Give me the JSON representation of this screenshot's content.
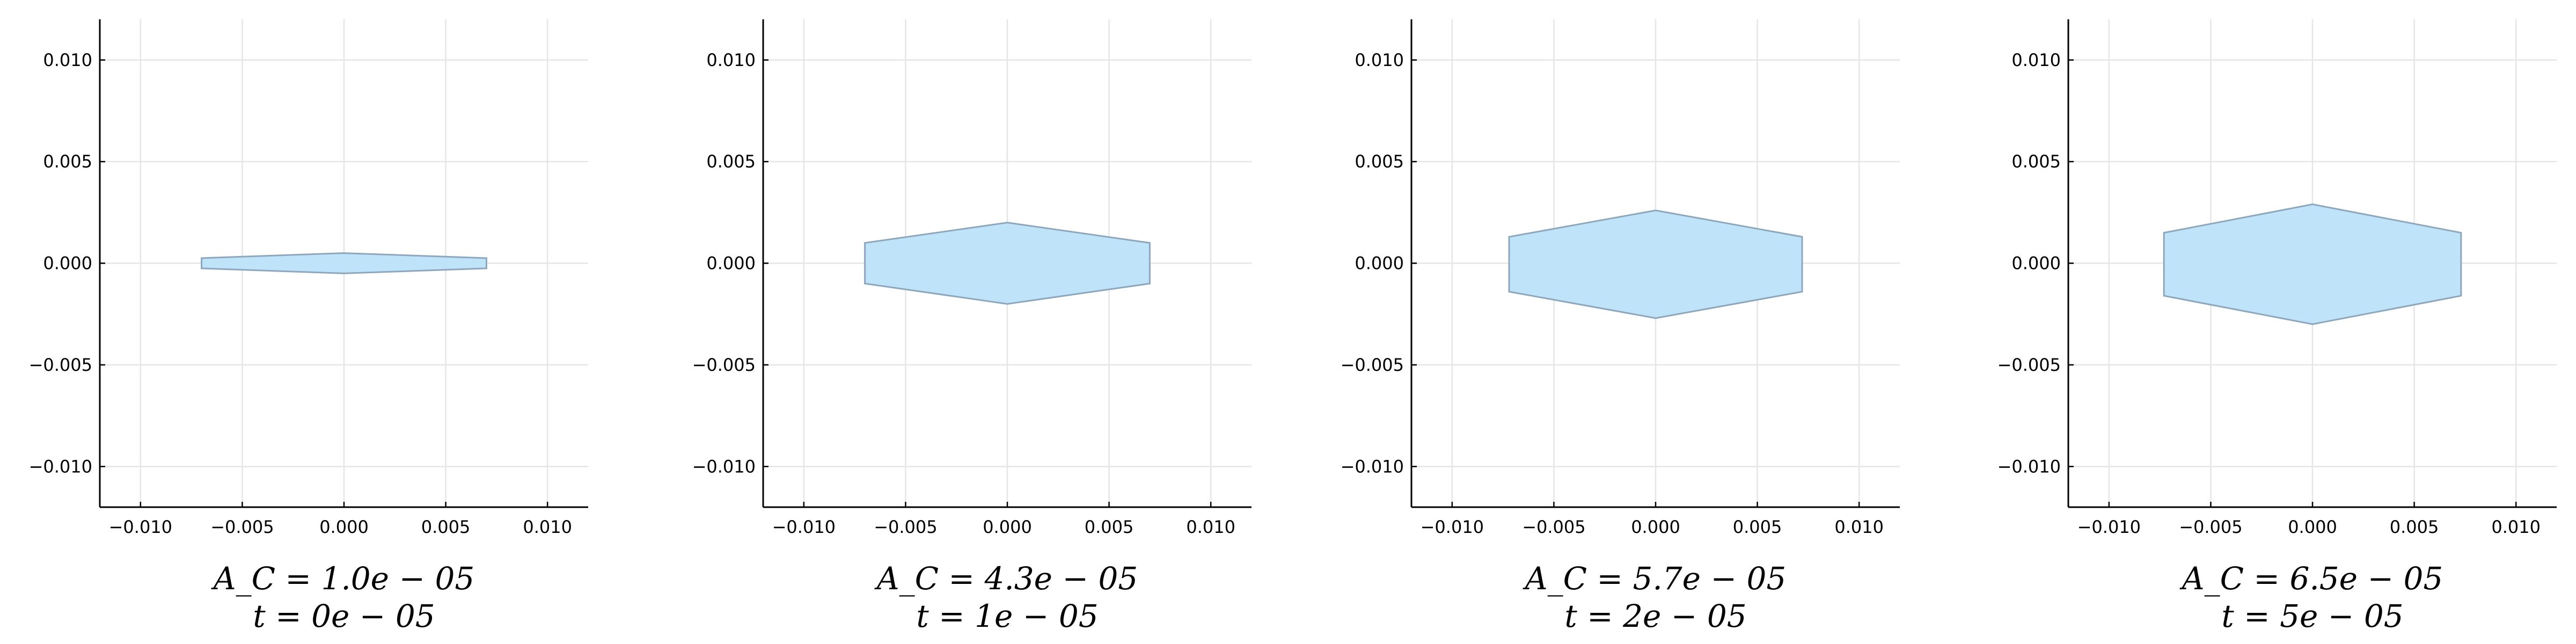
{
  "figure": {
    "colors": {
      "fill": "#bfe3f8",
      "stroke": "#8ea7bd",
      "grid": "#e6e6e6",
      "axis": "#000000"
    }
  },
  "chart_data": [
    {
      "type": "polygon",
      "xlim": [
        -0.012,
        0.012
      ],
      "ylim": [
        -0.012,
        0.012
      ],
      "grid": true,
      "x_ticks": [
        -0.01,
        -0.005,
        0.0,
        0.005,
        0.01
      ],
      "y_ticks": [
        -0.01,
        -0.005,
        0.0,
        0.005,
        0.01
      ],
      "x_tick_labels": [
        "−0.010",
        "−0.005",
        "0.000",
        "0.005",
        "0.010"
      ],
      "y_tick_labels": [
        "−0.010",
        "−0.005",
        "0.000",
        "0.005",
        "0.010"
      ],
      "polygon": [
        [
          -0.007,
          0.00025
        ],
        [
          0.0,
          0.0005
        ],
        [
          0.007,
          0.00025
        ],
        [
          0.007,
          -0.00025
        ],
        [
          0.0,
          -0.0005
        ],
        [
          -0.007,
          -0.00025
        ]
      ],
      "caption_line1": "A_C = 1.0e − 05",
      "caption_line2": "t = 0e − 05"
    },
    {
      "type": "polygon",
      "xlim": [
        -0.012,
        0.012
      ],
      "ylim": [
        -0.012,
        0.012
      ],
      "grid": true,
      "x_ticks": [
        -0.01,
        -0.005,
        0.0,
        0.005,
        0.01
      ],
      "y_ticks": [
        -0.01,
        -0.005,
        0.0,
        0.005,
        0.01
      ],
      "x_tick_labels": [
        "−0.010",
        "−0.005",
        "0.000",
        "0.005",
        "0.010"
      ],
      "y_tick_labels": [
        "−0.010",
        "−0.005",
        "0.000",
        "0.005",
        "0.010"
      ],
      "polygon": [
        [
          -0.007,
          0.001
        ],
        [
          0.0,
          0.002
        ],
        [
          0.007,
          0.001
        ],
        [
          0.007,
          -0.001
        ],
        [
          0.0,
          -0.002
        ],
        [
          -0.007,
          -0.001
        ]
      ],
      "caption_line1": "A_C = 4.3e − 05",
      "caption_line2": "t = 1e − 05"
    },
    {
      "type": "polygon",
      "xlim": [
        -0.012,
        0.012
      ],
      "ylim": [
        -0.012,
        0.012
      ],
      "grid": true,
      "x_ticks": [
        -0.01,
        -0.005,
        0.0,
        0.005,
        0.01
      ],
      "y_ticks": [
        -0.01,
        -0.005,
        0.0,
        0.005,
        0.01
      ],
      "x_tick_labels": [
        "−0.010",
        "−0.005",
        "0.000",
        "0.005",
        "0.010"
      ],
      "y_tick_labels": [
        "−0.010",
        "−0.005",
        "0.000",
        "0.005",
        "0.010"
      ],
      "polygon": [
        [
          -0.0072,
          0.0013
        ],
        [
          0.0,
          0.0026
        ],
        [
          0.0072,
          0.0013
        ],
        [
          0.0072,
          -0.0014
        ],
        [
          0.0,
          -0.0027
        ],
        [
          -0.0072,
          -0.0014
        ]
      ],
      "caption_line1": "A_C = 5.7e − 05",
      "caption_line2": "t = 2e − 05"
    },
    {
      "type": "polygon",
      "xlim": [
        -0.012,
        0.012
      ],
      "ylim": [
        -0.012,
        0.012
      ],
      "grid": true,
      "x_ticks": [
        -0.01,
        -0.005,
        0.0,
        0.005,
        0.01
      ],
      "y_ticks": [
        -0.01,
        -0.005,
        0.0,
        0.005,
        0.01
      ],
      "x_tick_labels": [
        "−0.010",
        "−0.005",
        "0.000",
        "0.005",
        "0.010"
      ],
      "y_tick_labels": [
        "−0.010",
        "−0.005",
        "0.000",
        "0.005",
        "0.010"
      ],
      "polygon": [
        [
          -0.0073,
          0.0015
        ],
        [
          0.0,
          0.0029
        ],
        [
          0.0073,
          0.0015
        ],
        [
          0.0073,
          -0.0016
        ],
        [
          0.0,
          -0.003
        ],
        [
          -0.0073,
          -0.0016
        ]
      ],
      "caption_line1": "A_C = 6.5e − 05",
      "caption_line2": "t = 5e − 05"
    }
  ]
}
